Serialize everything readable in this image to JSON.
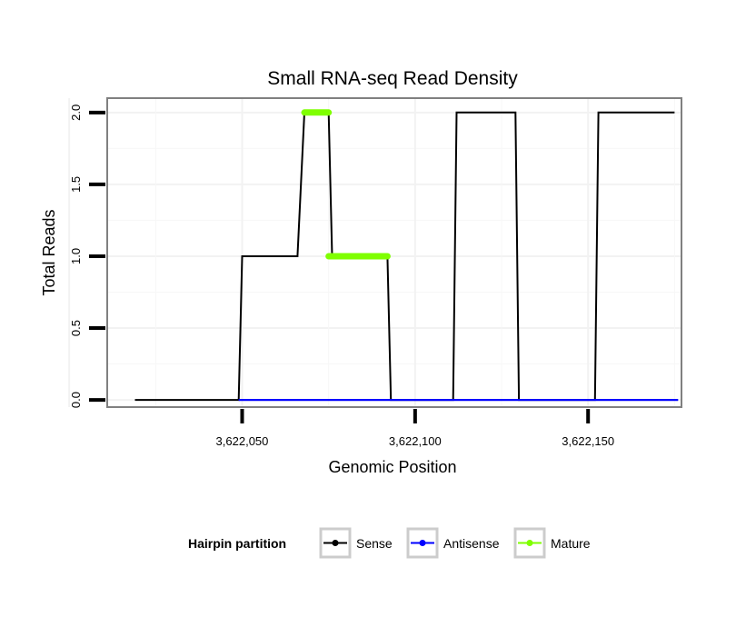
{
  "chart_data": {
    "type": "line",
    "title": "Small RNA-seq Read Density",
    "xlabel": "Genomic Position",
    "ylabel": "Total Reads",
    "xlim": [
      3622011,
      3622177
    ],
    "ylim": [
      -0.05,
      2.1
    ],
    "x_ticks": [
      3622050,
      3622100,
      3622150
    ],
    "x_tick_labels": [
      "3,622,050",
      "3,622,100",
      "3,622,150"
    ],
    "y_ticks": [
      0,
      0.5,
      1,
      1.5,
      2
    ],
    "y_tick_labels": [
      "0.0",
      "0.5",
      "1.0",
      "1.5",
      "2.0"
    ],
    "grid": true,
    "legend": {
      "title": "Hairpin partition",
      "position": "bottom",
      "entries": [
        {
          "name": "Sense",
          "color": "#000000"
        },
        {
          "name": "Antisense",
          "color": "#0000ff"
        },
        {
          "name": "Mature",
          "color": "#7fff00"
        }
      ]
    },
    "series": [
      {
        "name": "Sense",
        "color": "#000000",
        "x": [
          3622019,
          3622049,
          3622050,
          3622066,
          3622068,
          3622075,
          3622076,
          3622092,
          3622093,
          3622111,
          3622112,
          3622129,
          3622130,
          3622152,
          3622153,
          3622175
        ],
        "y": [
          0,
          0,
          1,
          1,
          2,
          2,
          1,
          1,
          0,
          0,
          2,
          2,
          0,
          0,
          2,
          2
        ]
      },
      {
        "name": "Antisense",
        "color": "#0000ff",
        "x": [
          3622049,
          3622176
        ],
        "y": [
          0,
          0
        ]
      },
      {
        "name": "Mature",
        "color": "#7fff00",
        "segments": [
          {
            "x": [
              3622068,
              3622075
            ],
            "y": [
              2,
              2
            ]
          },
          {
            "x": [
              3622075,
              3622092
            ],
            "y": [
              1,
              1
            ]
          }
        ]
      }
    ]
  }
}
